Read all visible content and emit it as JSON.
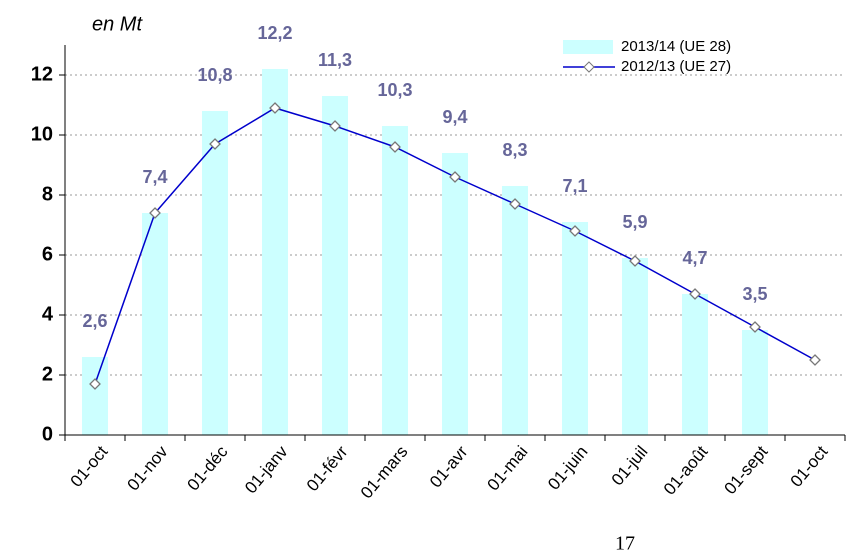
{
  "chart_data": {
    "type": "bar",
    "annotation": "en Mt",
    "page_number": "17",
    "categories": [
      "01-oct",
      "01-nov",
      "01-déc",
      "01-janv",
      "01-févr",
      "01-mars",
      "01-avr",
      "01-mai",
      "01-juin",
      "01-juil",
      "01-août",
      "01-sept",
      "01-oct"
    ],
    "series": [
      {
        "name": "2013/14 (UE 28)",
        "type": "bar",
        "color": "#ccffff",
        "values": [
          2.6,
          7.4,
          10.8,
          12.2,
          11.3,
          10.3,
          9.4,
          8.3,
          7.1,
          5.9,
          4.7,
          3.5,
          null
        ],
        "value_labels": [
          "2,6",
          "7,4",
          "10,8",
          "12,2",
          "11,3",
          "10,3",
          "9,4",
          "8,3",
          "7,1",
          "5,9",
          "4,7",
          "3,5",
          null
        ],
        "label_color": "#666699"
      },
      {
        "name": "2012/13 (UE 27)",
        "type": "line",
        "color": "#0000cc",
        "values": [
          1.7,
          7.4,
          9.7,
          10.9,
          10.3,
          9.6,
          8.6,
          7.7,
          6.8,
          5.8,
          4.7,
          3.6,
          2.5
        ]
      }
    ],
    "ylim": [
      0,
      13
    ],
    "yticks": [
      0,
      2,
      4,
      6,
      8,
      10,
      12
    ],
    "grid": true,
    "legend": "top-right"
  }
}
